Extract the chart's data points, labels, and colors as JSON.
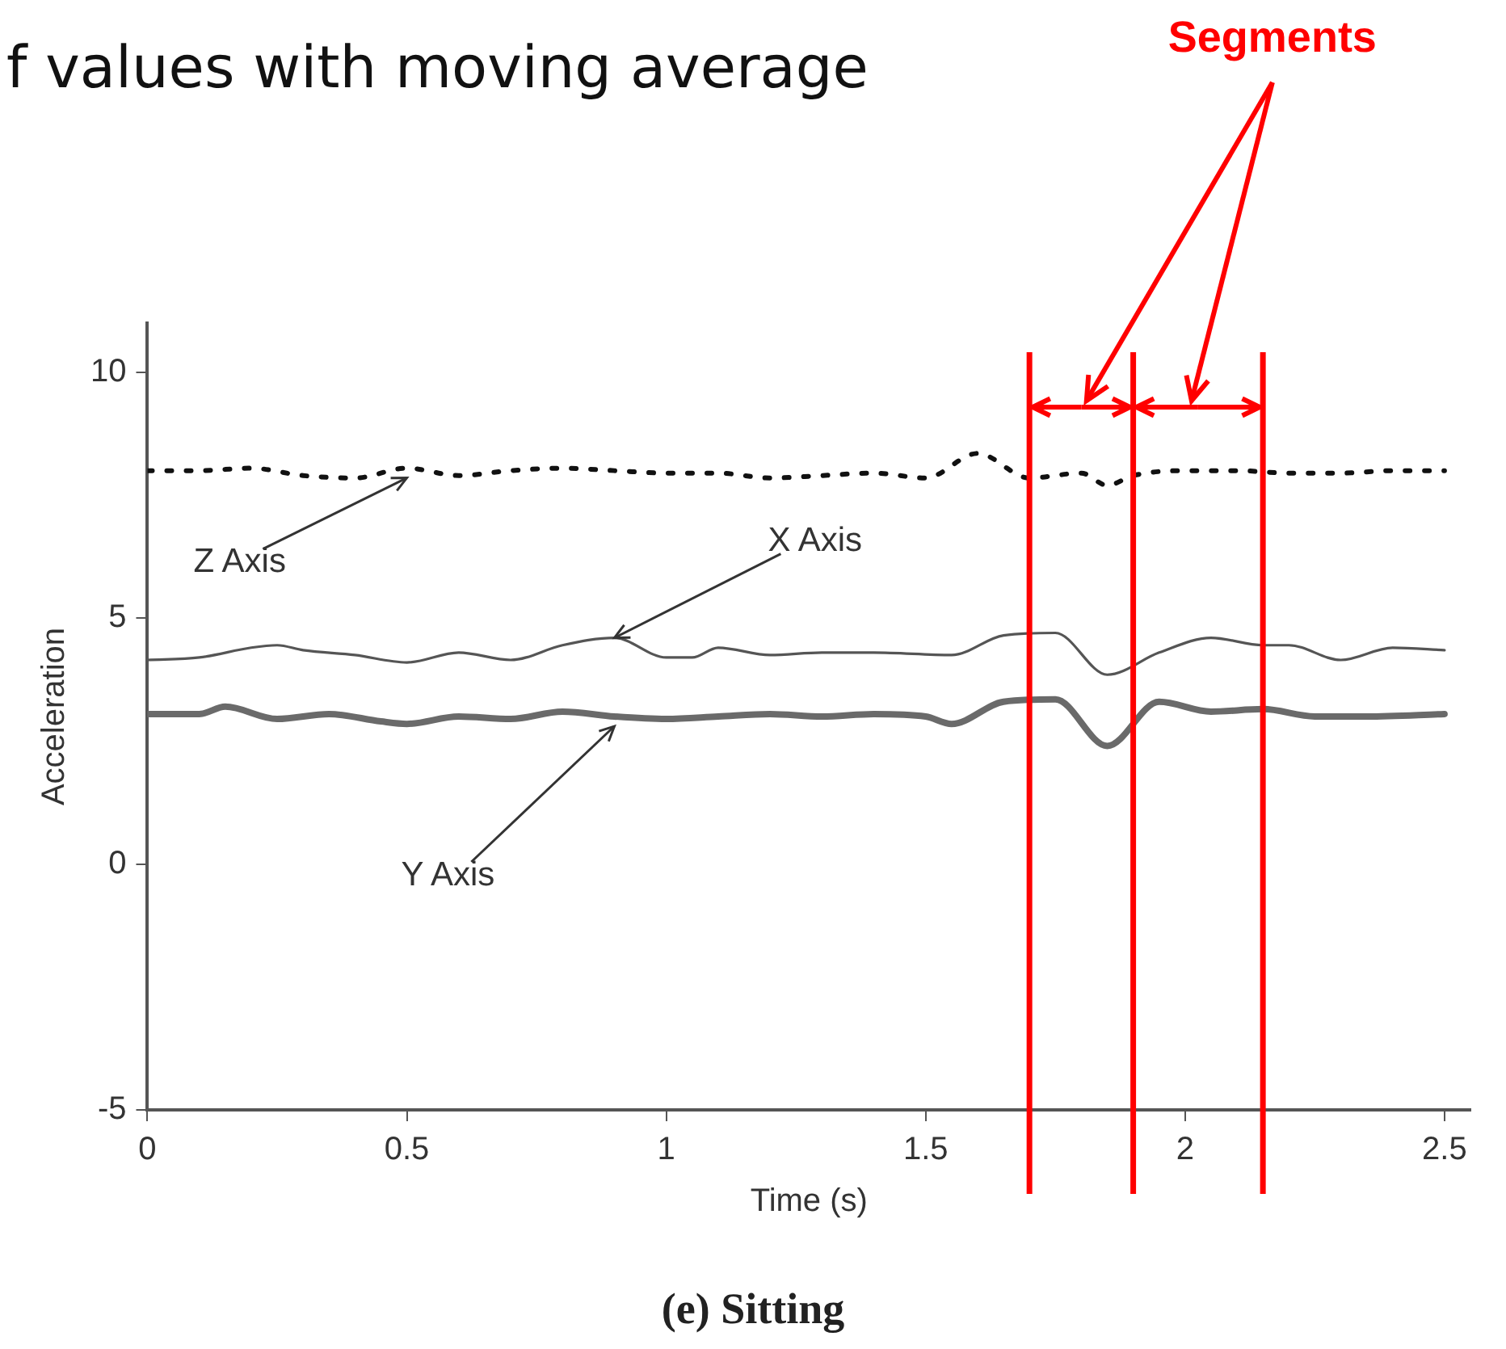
{
  "chart_data": {
    "type": "line",
    "title": "f values with moving average",
    "subtitle": "(e) Sitting",
    "xlabel": "Time (s)",
    "ylabel": "Acceleration",
    "xlim": [
      0,
      2.55
    ],
    "xticks": [
      0,
      0.5,
      1,
      1.5,
      2,
      2.5
    ],
    "ylim": [
      -5,
      11
    ],
    "yticks": [
      -5,
      0,
      5,
      10
    ],
    "grid": false,
    "legend": false,
    "marker": "none",
    "series": [
      {
        "name": "Z Axis",
        "color": "#111111",
        "line_style": "dotted",
        "x": [
          0,
          0.1,
          0.2,
          0.3,
          0.4,
          0.5,
          0.6,
          0.7,
          0.8,
          0.9,
          1.0,
          1.1,
          1.2,
          1.3,
          1.4,
          1.5,
          1.6,
          1.7,
          1.8,
          1.85,
          1.9,
          2.0,
          2.1,
          2.2,
          2.3,
          2.4,
          2.5
        ],
        "values": [
          8.0,
          8.0,
          8.05,
          7.9,
          7.85,
          8.05,
          7.9,
          8.0,
          8.05,
          8.0,
          7.95,
          7.95,
          7.85,
          7.9,
          7.95,
          7.85,
          8.35,
          7.85,
          7.95,
          7.7,
          7.9,
          8.0,
          8.0,
          7.95,
          7.95,
          8.0,
          8.0
        ]
      },
      {
        "name": "X Axis",
        "color": "#555555",
        "line_style": "solid",
        "x": [
          0,
          0.1,
          0.2,
          0.25,
          0.3,
          0.4,
          0.5,
          0.6,
          0.7,
          0.8,
          0.9,
          1.0,
          1.05,
          1.1,
          1.2,
          1.3,
          1.4,
          1.55,
          1.65,
          1.75,
          1.85,
          1.95,
          2.05,
          2.15,
          2.2,
          2.3,
          2.4,
          2.5
        ],
        "values": [
          4.15,
          4.2,
          4.4,
          4.45,
          4.35,
          4.25,
          4.1,
          4.3,
          4.15,
          4.45,
          4.6,
          4.2,
          4.2,
          4.4,
          4.25,
          4.3,
          4.3,
          4.25,
          4.65,
          4.7,
          3.85,
          4.3,
          4.6,
          4.45,
          4.45,
          4.15,
          4.4,
          4.35
        ]
      },
      {
        "name": "Y Axis",
        "color": "#6a6a6a",
        "line_style": "solid",
        "x": [
          0,
          0.1,
          0.15,
          0.25,
          0.35,
          0.45,
          0.5,
          0.6,
          0.7,
          0.8,
          0.9,
          1.0,
          1.1,
          1.2,
          1.3,
          1.4,
          1.5,
          1.55,
          1.65,
          1.75,
          1.85,
          1.95,
          2.05,
          2.15,
          2.25,
          2.35,
          2.5
        ],
        "values": [
          3.05,
          3.05,
          3.2,
          2.95,
          3.05,
          2.9,
          2.85,
          3.0,
          2.95,
          3.1,
          3.0,
          2.95,
          3.0,
          3.05,
          3.0,
          3.05,
          3.0,
          2.85,
          3.3,
          3.35,
          2.4,
          3.3,
          3.1,
          3.15,
          3.0,
          3.0,
          3.05
        ]
      }
    ],
    "ref_lines": [
      {
        "axis": "x",
        "value": 1.7,
        "color": "#ff0000"
      },
      {
        "axis": "x",
        "value": 1.9,
        "color": "#ff0000"
      },
      {
        "axis": "x",
        "value": 2.15,
        "color": "#ff0000"
      }
    ],
    "annotations": [
      "Segments"
    ]
  }
}
